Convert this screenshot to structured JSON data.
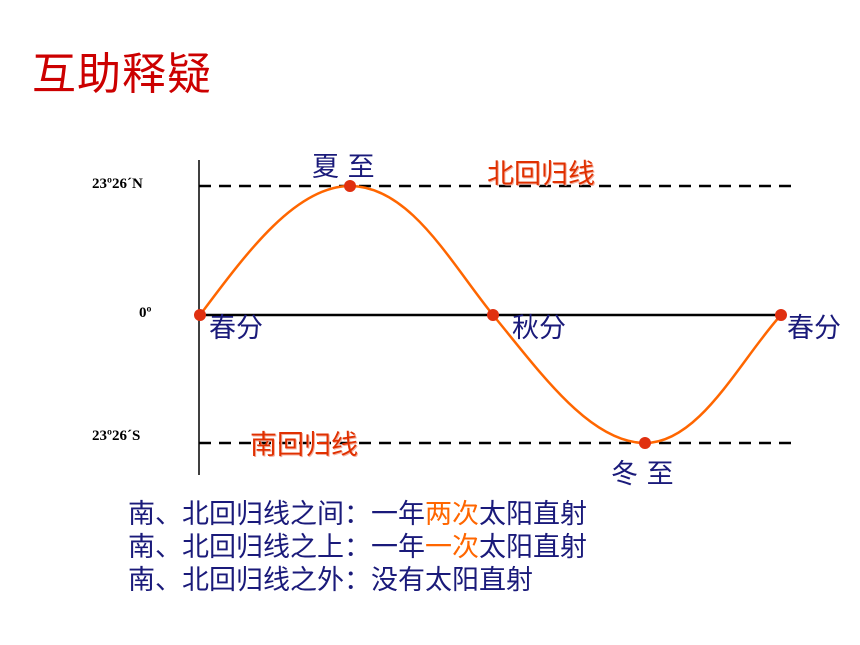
{
  "title": "互助释疑",
  "axis_labels": {
    "north": "23º26´N",
    "zero": "0º",
    "south": "23º26´S"
  },
  "terms": {
    "summer_solstice": "夏 至",
    "spring_equinox_start": "春分",
    "autumn_equinox": "秋分",
    "spring_equinox_end": "春分",
    "winter_solstice": "冬 至"
  },
  "lines": {
    "tropic_cancer": "北回归线",
    "tropic_capricorn": "南回归线"
  },
  "captions": [
    {
      "prefix": "南、北回归线之间：一年",
      "highlight": "两次",
      "suffix": "太阳直射"
    },
    {
      "prefix": "南、北回归线之上：一年",
      "highlight": "一次",
      "suffix": "太阳直射"
    },
    {
      "prefix": "南、北回归线之外：没有太阳直射",
      "highlight": "",
      "suffix": ""
    }
  ],
  "colors": {
    "title": "#cc0000",
    "curve": "#ff6600",
    "points": "#e03010",
    "text": "#1a1a7a",
    "highlight": "#ff6600"
  }
}
